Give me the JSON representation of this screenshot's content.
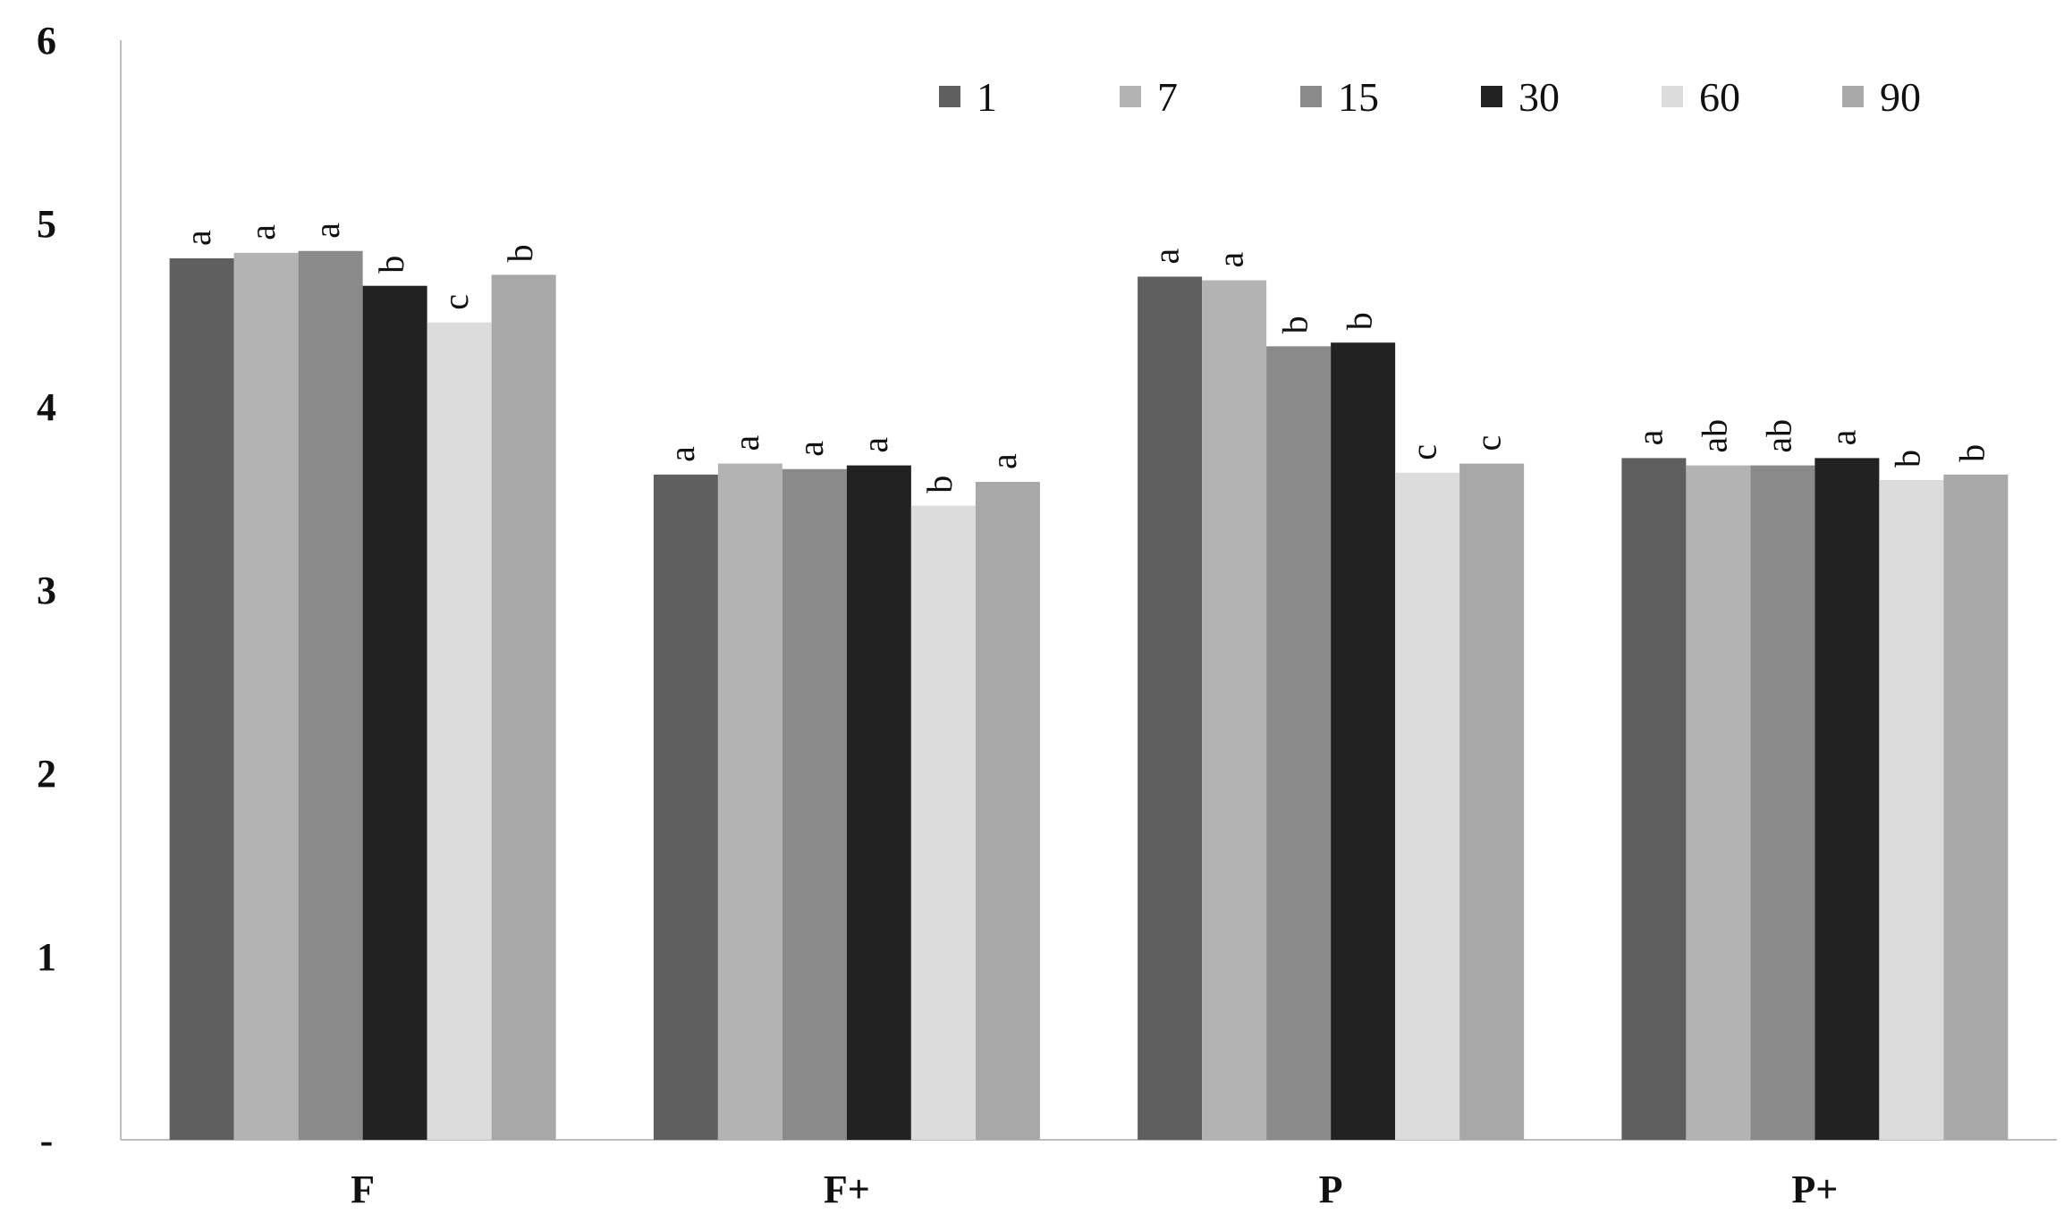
{
  "chart_data": {
    "type": "bar",
    "title": "",
    "xlabel": "",
    "ylabel": "",
    "ylim": [
      0,
      6
    ],
    "yticks": [
      {
        "value": 0,
        "label": "-"
      },
      {
        "value": 1,
        "label": "1"
      },
      {
        "value": 2,
        "label": "2"
      },
      {
        "value": 3,
        "label": "3"
      },
      {
        "value": 4,
        "label": "4"
      },
      {
        "value": 5,
        "label": "5"
      },
      {
        "value": 6,
        "label": "6"
      }
    ],
    "categories": [
      "F",
      "F+",
      "P",
      "P+"
    ],
    "legend_position": "top-right",
    "grid": false,
    "series": [
      {
        "name": "1",
        "color": "#5f5f5f",
        "values": [
          4.81,
          3.63,
          4.71,
          3.72
        ],
        "letters": [
          "a",
          "a",
          "a",
          "a"
        ]
      },
      {
        "name": "7",
        "color": "#b3b3b3",
        "values": [
          4.84,
          3.69,
          4.69,
          3.68
        ],
        "letters": [
          "a",
          "a",
          "a",
          "ab"
        ]
      },
      {
        "name": "15",
        "color": "#8a8a8a",
        "values": [
          4.85,
          3.66,
          4.33,
          3.68
        ],
        "letters": [
          "a",
          "a",
          "b",
          "ab"
        ]
      },
      {
        "name": "30",
        "color": "#222222",
        "values": [
          4.66,
          3.68,
          4.35,
          3.72
        ],
        "letters": [
          "b",
          "a",
          "b",
          "a"
        ]
      },
      {
        "name": "60",
        "color": "#dcdcdc",
        "values": [
          4.46,
          3.46,
          3.64,
          3.6
        ],
        "letters": [
          "c",
          "b",
          "c",
          "b"
        ]
      },
      {
        "name": "90",
        "color": "#a8a8a8",
        "values": [
          4.72,
          3.59,
          3.69,
          3.63
        ],
        "letters": [
          "b",
          "a",
          "c",
          "b"
        ]
      }
    ]
  }
}
